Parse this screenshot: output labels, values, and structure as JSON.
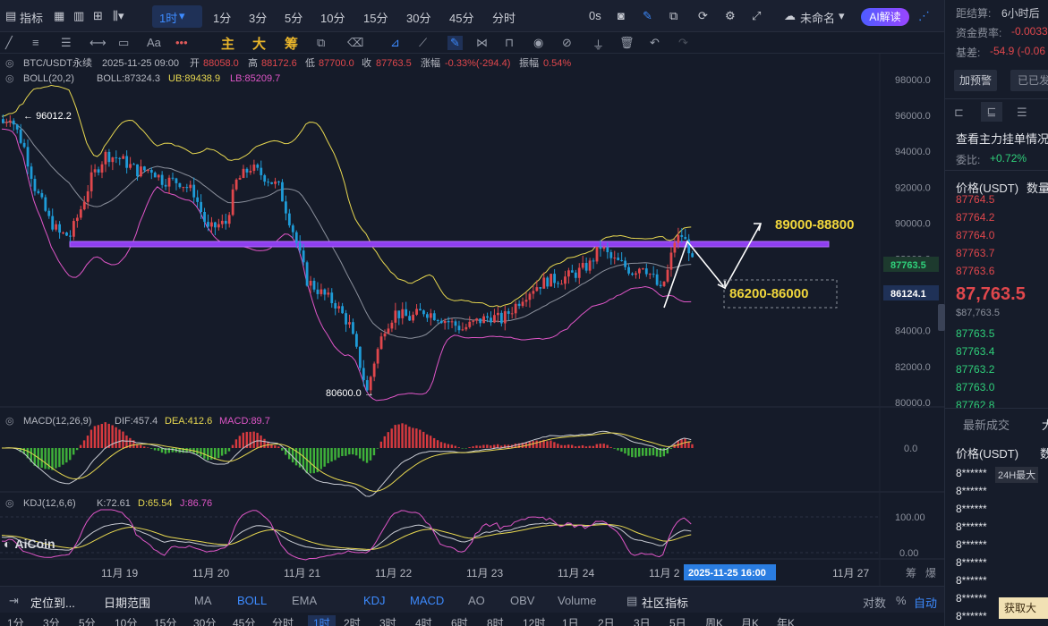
{
  "topbar": {
    "indicators": "指标",
    "active_tf": "1时",
    "timeframes": [
      "1分",
      "3分",
      "5分",
      "10分",
      "15分",
      "30分",
      "45分",
      "分时"
    ],
    "seconds": "0s",
    "layout_name": "未命名",
    "ai": "AI解读"
  },
  "toolbar": {
    "text_tool": "Aa",
    "zhu": "主",
    "da": "大",
    "chou": "筹"
  },
  "info": {
    "symbol": "BTC/USDT永续",
    "time": "2025-11-25 09:00",
    "open_lbl": "开",
    "open": "88058.0",
    "high_lbl": "高",
    "high": "88172.6",
    "low_lbl": "低",
    "low": "87700.0",
    "close_lbl": "收",
    "close": "87763.5",
    "chg_lbl": "涨幅",
    "chg": "-0.33%(-294.4)",
    "amp_lbl": "振幅",
    "amp": "0.54%"
  },
  "boll": {
    "label": "BOLL(20,2)",
    "mid": "BOLL:87324.3",
    "ub": "UB:89438.9",
    "lb": "LB:85209.7"
  },
  "macd": {
    "label": "MACD(12,26,9)",
    "dif": "DIF:457.4",
    "dea": "DEA:412.6",
    "macd": "MACD:89.7",
    "zero": "0.0"
  },
  "kdj": {
    "label": "KDJ(12,6,6)",
    "k": "K:72.61",
    "d": "D:65.54",
    "j": "J:86.76",
    "top": "100.00",
    "bottom": "0.00"
  },
  "price_axis": [
    "98000.0",
    "96000.0",
    "94000.0",
    "92000.0",
    "90000.0",
    "88000.0",
    "86000.0",
    "84000.0",
    "82000.0",
    "80000.0"
  ],
  "price_tags": {
    "last": "87763.5",
    "alt": "86124.1"
  },
  "annotations": {
    "high": "96012.2",
    "low": "80600.0",
    "target_up": "89000-88800",
    "target_down": "86200-86000"
  },
  "date_axis": [
    "11月 19",
    "11月 20",
    "11月 21",
    "11月 22",
    "11月 23",
    "11月 24",
    "11月 2",
    "11月 27"
  ],
  "crosshair_date": "2025-11-25 16:00",
  "axis_end": [
    "筹",
    "爆"
  ],
  "watermark": "AiCoin",
  "bottombar": {
    "locate": "定位到...",
    "range": "日期范围",
    "items": [
      "MA",
      "BOLL",
      "EMA",
      "KDJ",
      "MACD",
      "AO",
      "OBV",
      "Volume",
      "社区指标"
    ],
    "log": "对数",
    "pct": "%",
    "auto": "自动"
  },
  "tf_bottom": [
    "1分",
    "3分",
    "5分",
    "10分",
    "15分",
    "30分",
    "45分",
    "分时",
    "1时",
    "2时",
    "3时",
    "4时",
    "6时",
    "8时",
    "12时",
    "1日",
    "2日",
    "3日",
    "5日",
    "周K",
    "月K",
    "年K"
  ],
  "right": {
    "settle_lbl": "距结算:",
    "settle": "6小时后",
    "fund_lbl": "资金费率:",
    "fund": "-0.0033",
    "basis_lbl": "基差:",
    "basis": "-54.9 (-0.06",
    "alert_btn": "加预警",
    "sent_btn": "已已发",
    "depth_title": "查看主力挂单情况",
    "ratio_lbl": "委比:",
    "ratio": "+0.72%",
    "price_hdr": "价格(USDT)",
    "qty_hdr": "数量",
    "asks": [
      "87764.5",
      "87764.2",
      "87764.0",
      "87763.7",
      "87763.6"
    ],
    "last_big": "87,763.5",
    "last_sub": "$87,763.5",
    "bids": [
      "87763.5",
      "87763.4",
      "87763.2",
      "87763.0",
      "87762.8"
    ],
    "trades_tab": "最新成交",
    "trades_tab2": "大",
    "price_hdr2": "价格(USDT)",
    "qty_hdr2": "数",
    "masked": [
      "8******",
      "8******",
      "8******",
      "8******",
      "8******",
      "8******",
      "8******",
      "8******",
      "8******"
    ],
    "tag_24h": "24H最大",
    "get_btn": "获取大"
  },
  "chart_data": {
    "type": "candlestick",
    "symbol": "BTC/USDT",
    "interval": "1h",
    "ylim": [
      79200,
      98800
    ],
    "x_dates": [
      "11月 19",
      "11月 20",
      "11月 21",
      "11月 22",
      "11月 23",
      "11月 24",
      "11月 25",
      "11月 27"
    ],
    "price_path": [
      [
        0,
        95600
      ],
      [
        2,
        96012
      ],
      [
        6,
        94200
      ],
      [
        9,
        92000
      ],
      [
        13,
        90200
      ],
      [
        16,
        89400
      ],
      [
        19,
        89300
      ],
      [
        22,
        90800
      ],
      [
        25,
        92500
      ],
      [
        29,
        93800
      ],
      [
        33,
        93600
      ],
      [
        38,
        92900
      ],
      [
        42,
        93000
      ],
      [
        45,
        92400
      ],
      [
        50,
        92300
      ],
      [
        54,
        91700
      ],
      [
        58,
        89600
      ],
      [
        61,
        89900
      ],
      [
        63,
        90000
      ],
      [
        66,
        92300
      ],
      [
        70,
        93100
      ],
      [
        74,
        92600
      ],
      [
        78,
        92000
      ],
      [
        82,
        89600
      ],
      [
        86,
        86800
      ],
      [
        90,
        86100
      ],
      [
        94,
        85500
      ],
      [
        98,
        84300
      ],
      [
        101,
        82100
      ],
      [
        103,
        80600
      ],
      [
        105,
        82300
      ],
      [
        108,
        84200
      ],
      [
        111,
        85000
      ],
      [
        115,
        84700
      ],
      [
        119,
        85100
      ],
      [
        123,
        84800
      ],
      [
        127,
        84400
      ],
      [
        130,
        84100
      ],
      [
        134,
        84500
      ],
      [
        138,
        84800
      ],
      [
        141,
        84600
      ],
      [
        144,
        85200
      ],
      [
        147,
        85900
      ],
      [
        150,
        86400
      ],
      [
        154,
        86800
      ],
      [
        158,
        86900
      ],
      [
        162,
        87200
      ],
      [
        166,
        87700
      ],
      [
        169,
        88700
      ],
      [
        172,
        88000
      ],
      [
        175,
        87700
      ],
      [
        178,
        87300
      ],
      [
        181,
        87700
      ],
      [
        184,
        86900
      ],
      [
        186,
        86200
      ],
      [
        188,
        87300
      ],
      [
        190,
        89000
      ],
      [
        192,
        89300
      ],
      [
        194,
        88600
      ],
      [
        195,
        87763
      ]
    ],
    "support_band": 89000,
    "high_label": 96012.2,
    "low_label": 80600.0,
    "last_price": 87763.5,
    "ma_mark": 86124.1,
    "target_zone_up": [
      88800,
      89000
    ],
    "target_zone_down": [
      86000,
      86200
    ]
  }
}
